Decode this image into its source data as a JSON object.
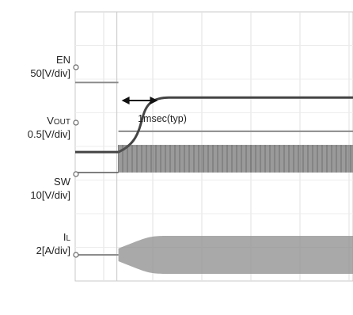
{
  "chart_data": {
    "type": "line",
    "title": "",
    "xlabel": "",
    "ylabel": "",
    "grid": true,
    "time_divisions": 10,
    "voltage_divisions": 8,
    "channels": [
      {
        "id": "en",
        "name": "EN",
        "name_sub": "",
        "scale": "50[V/div]",
        "color": "#8a8a8a",
        "step_at_div": 0.3,
        "baseline_div": 2.1,
        "high_div": 2.75
      },
      {
        "id": "vout",
        "name": "V",
        "name_sub": "OUT",
        "scale": "0.5[V/div]",
        "color": "#444444",
        "ramp_start_div": 0.3,
        "ramp_end_div": 1.33,
        "low_div": 2.52,
        "high_div": 0.9
      },
      {
        "id": "sw",
        "name": "SW",
        "name_sub": "",
        "scale": "10[V/div]",
        "color": "#555555",
        "switching_start_div": 0.3,
        "baseline_div": 4.9,
        "high_div": 4.0
      },
      {
        "id": "il",
        "name": "I",
        "name_sub": "L",
        "scale": "2[A/div]",
        "color": "#8c8c8c",
        "ramp_start_div": 0.3,
        "ramp_end_div": 1.4,
        "center_div": 6.65,
        "amplitude_div": 0.45
      }
    ],
    "annotation": {
      "text": "1msec(typ)",
      "from_div": 0.3,
      "to_div": 1.33
    }
  }
}
